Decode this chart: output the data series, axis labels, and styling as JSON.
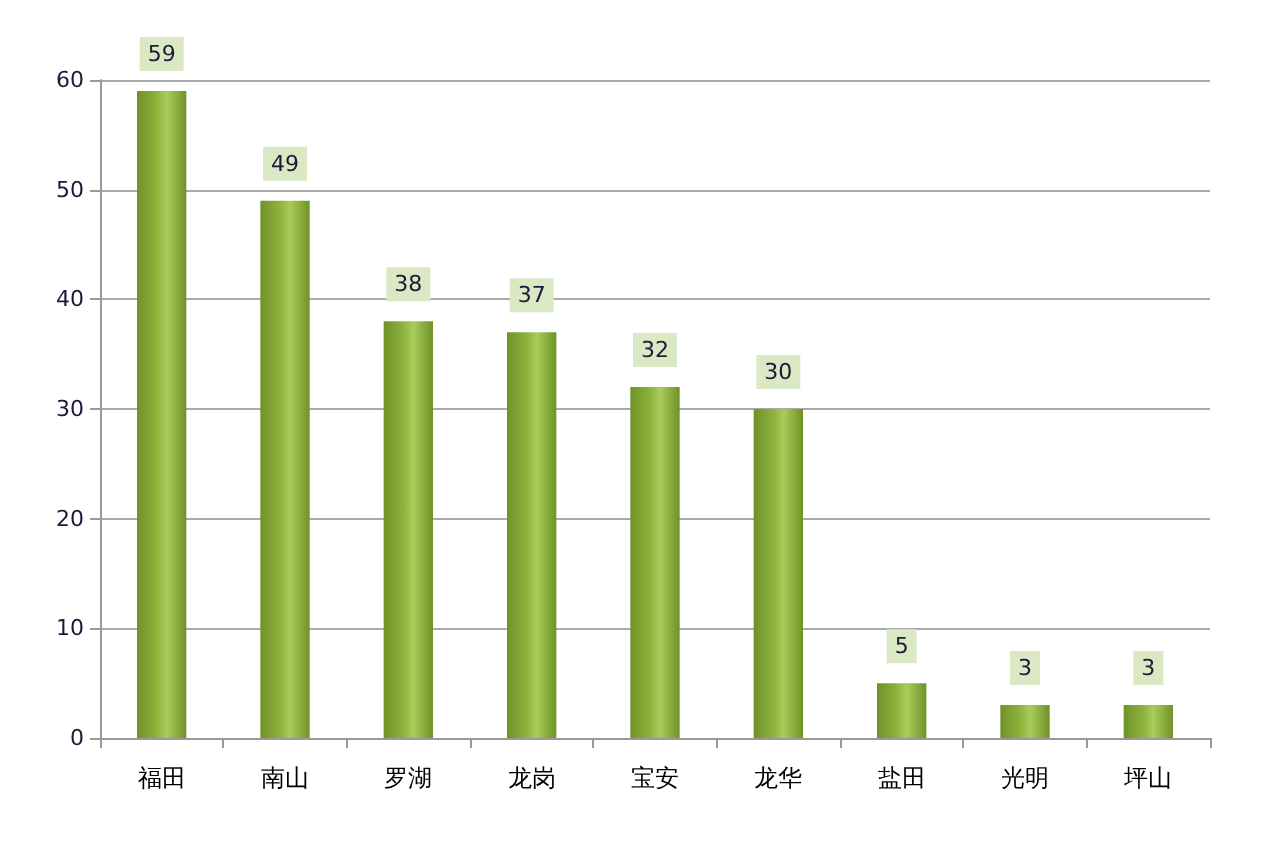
{
  "chart_data": {
    "type": "bar",
    "categories": [
      "福田",
      "南山",
      "罗湖",
      "龙岗",
      "宝安",
      "龙华",
      "盐田",
      "光明",
      "坪山"
    ],
    "values": [
      59,
      49,
      38,
      37,
      32,
      30,
      5,
      3,
      3
    ],
    "color": "#8db33c",
    "ylim": [
      0,
      60
    ],
    "yticks": [
      0,
      10,
      20,
      30,
      40,
      50,
      60
    ],
    "grid": "y",
    "data_labels": true
  }
}
